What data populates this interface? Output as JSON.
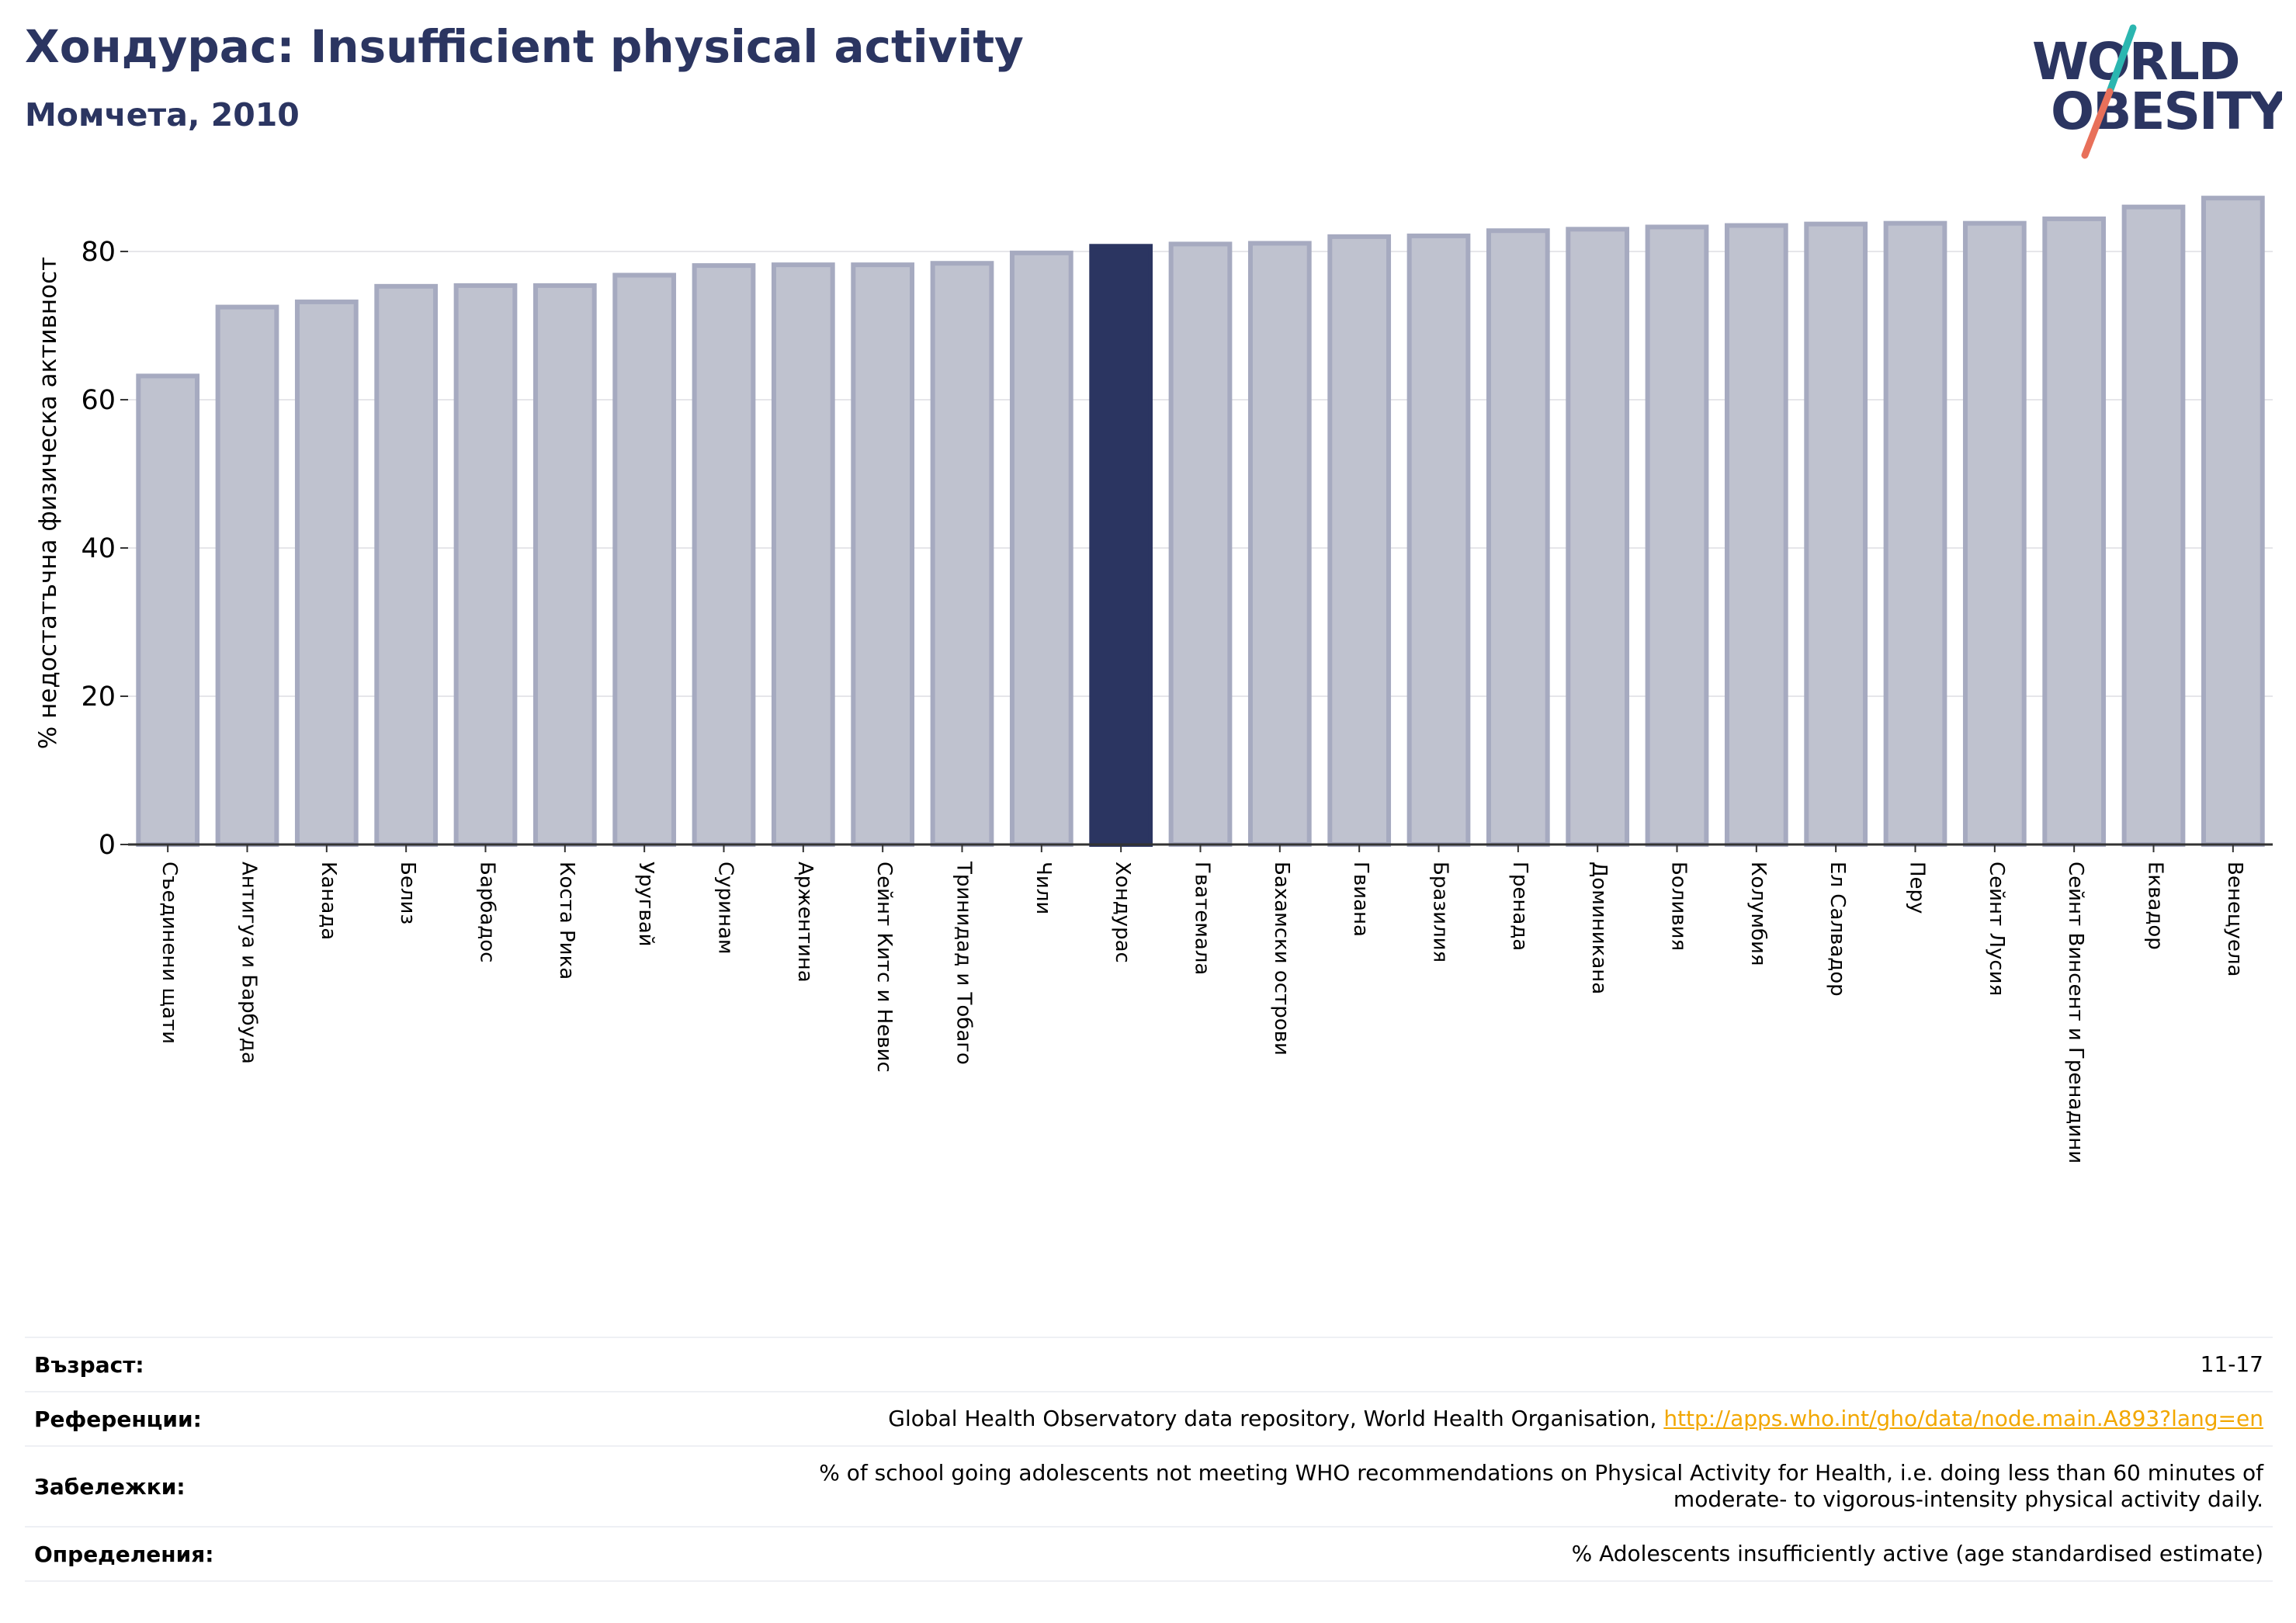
{
  "header": {
    "title": "Хондурас: Insufficient physical activity",
    "subtitle": "Момчета, 2010"
  },
  "logo": {
    "line1": "WORLD",
    "line2": "OBESITY",
    "colors": {
      "text": "#2b3561",
      "slash_top": "#2bb6b0",
      "slash_bottom": "#e8705a"
    }
  },
  "colors": {
    "bar_default": "#bfc2cf",
    "bar_stroke": "#a6aac0",
    "bar_highlight": "#2b3561",
    "axis": "#333333",
    "grid": "#e6e6ea"
  },
  "chart_data": {
    "type": "bar",
    "title": "Хондурас: Insufficient physical activity",
    "subtitle": "Момчета, 2010",
    "ylabel": "% недостатъчна физическа активност",
    "ylim": [
      0,
      89
    ],
    "yticks": [
      0,
      20,
      40,
      60,
      80
    ],
    "grid": true,
    "highlight": "Хондурас",
    "categories": [
      "Съединени щати",
      "Антигуа и Барбуда",
      "Канада",
      "Белиз",
      "Барбадос",
      "Коста Рика",
      "Уругвай",
      "Суринам",
      "Аржентина",
      "Сейнт Китс и Невис",
      "Тринидад и Тобаго",
      "Чили",
      "Хондурас",
      "Гватемала",
      "Бахамски острови",
      "Гвиана",
      "Бразилия",
      "Гренада",
      "Доминикана",
      "Боливия",
      "Колумбия",
      "Ел Салвадор",
      "Перу",
      "Сейнт Лусия",
      "Сейнт Винсент и Гренадини",
      "Еквадор",
      "Венецуела"
    ],
    "values": [
      63.2,
      72.5,
      73.2,
      75.3,
      75.4,
      75.4,
      76.8,
      78.1,
      78.2,
      78.2,
      78.4,
      79.8,
      80.7,
      81.0,
      81.1,
      82.0,
      82.1,
      82.8,
      83.0,
      83.3,
      83.5,
      83.7,
      83.8,
      83.8,
      84.4,
      86.0,
      87.2
    ]
  },
  "info": {
    "age_label": "Възраст:",
    "age_value": "11-17",
    "refs_label": "Референции:",
    "refs_text": "Global Health Observatory data repository, World Health Organisation,",
    "refs_link": "http://apps.who.int/gho/data/node.main.A893?lang=en",
    "notes_label": "Забележки:",
    "notes_line1": "% of school going adolescents not meeting WHO recommendations on Physical Activity for Health, i.e. doing less than 60 minutes of",
    "notes_line2": "moderate- to vigorous-intensity physical activity daily.",
    "defs_label": "Определения:",
    "defs_value": "% Adolescents insufficiently active (age standardised estimate)"
  }
}
